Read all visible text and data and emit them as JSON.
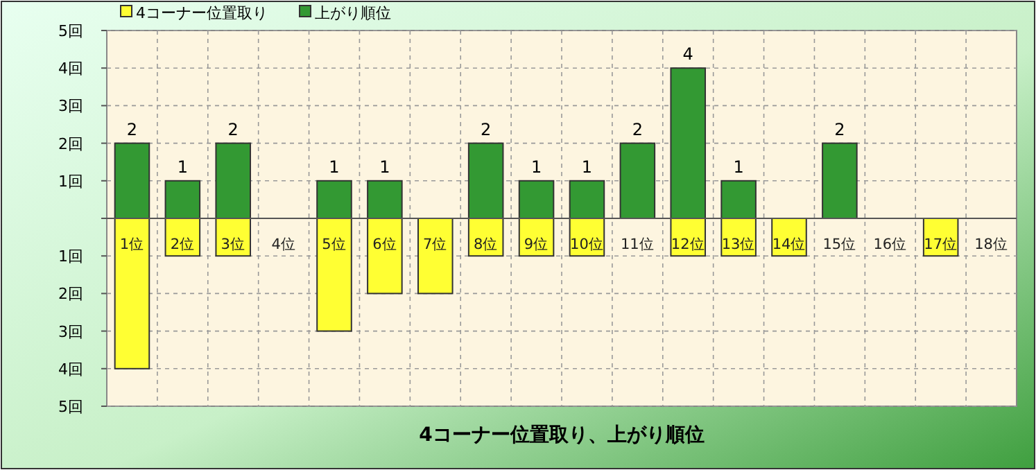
{
  "chart_data": {
    "type": "bar",
    "title": "4コーナー位置取り、上がり順位",
    "categories": [
      "1位",
      "2位",
      "3位",
      "4位",
      "5位",
      "6位",
      "7位",
      "8位",
      "9位",
      "10位",
      "11位",
      "12位",
      "13位",
      "14位",
      "15位",
      "16位",
      "17位",
      "18位"
    ],
    "series": [
      {
        "name": "4コーナー位置取り",
        "color": "#ffff33",
        "values": [
          -4,
          -1,
          -1,
          null,
          -3,
          -2,
          -2,
          -1,
          -1,
          -1,
          null,
          -1,
          -1,
          -1,
          null,
          null,
          -1,
          null
        ]
      },
      {
        "name": "上がり順位",
        "color": "#339933",
        "values": [
          2,
          1,
          2,
          null,
          1,
          1,
          null,
          2,
          1,
          1,
          2,
          4,
          1,
          null,
          2,
          null,
          null,
          null
        ],
        "value_labels": [
          "2",
          "1",
          "2",
          null,
          "1",
          "1",
          null,
          "2",
          "1",
          "1",
          "2",
          "4",
          "1",
          null,
          "2",
          null,
          null,
          null
        ]
      }
    ],
    "stacked": true,
    "ylim": [
      -5,
      5
    ],
    "yticks": [
      {
        "value": -5,
        "label": "5回"
      },
      {
        "value": -4,
        "label": "4回"
      },
      {
        "value": -3,
        "label": "3回"
      },
      {
        "value": -2,
        "label": "2回"
      },
      {
        "value": -1,
        "label": "1回"
      },
      {
        "value": 0,
        "label": null
      },
      {
        "value": 1,
        "label": "1回"
      },
      {
        "value": 2,
        "label": "2回"
      },
      {
        "value": 3,
        "label": "3回"
      },
      {
        "value": 4,
        "label": "4回"
      },
      {
        "value": 5,
        "label": "5回"
      }
    ],
    "grid": true,
    "legend": "top left"
  }
}
